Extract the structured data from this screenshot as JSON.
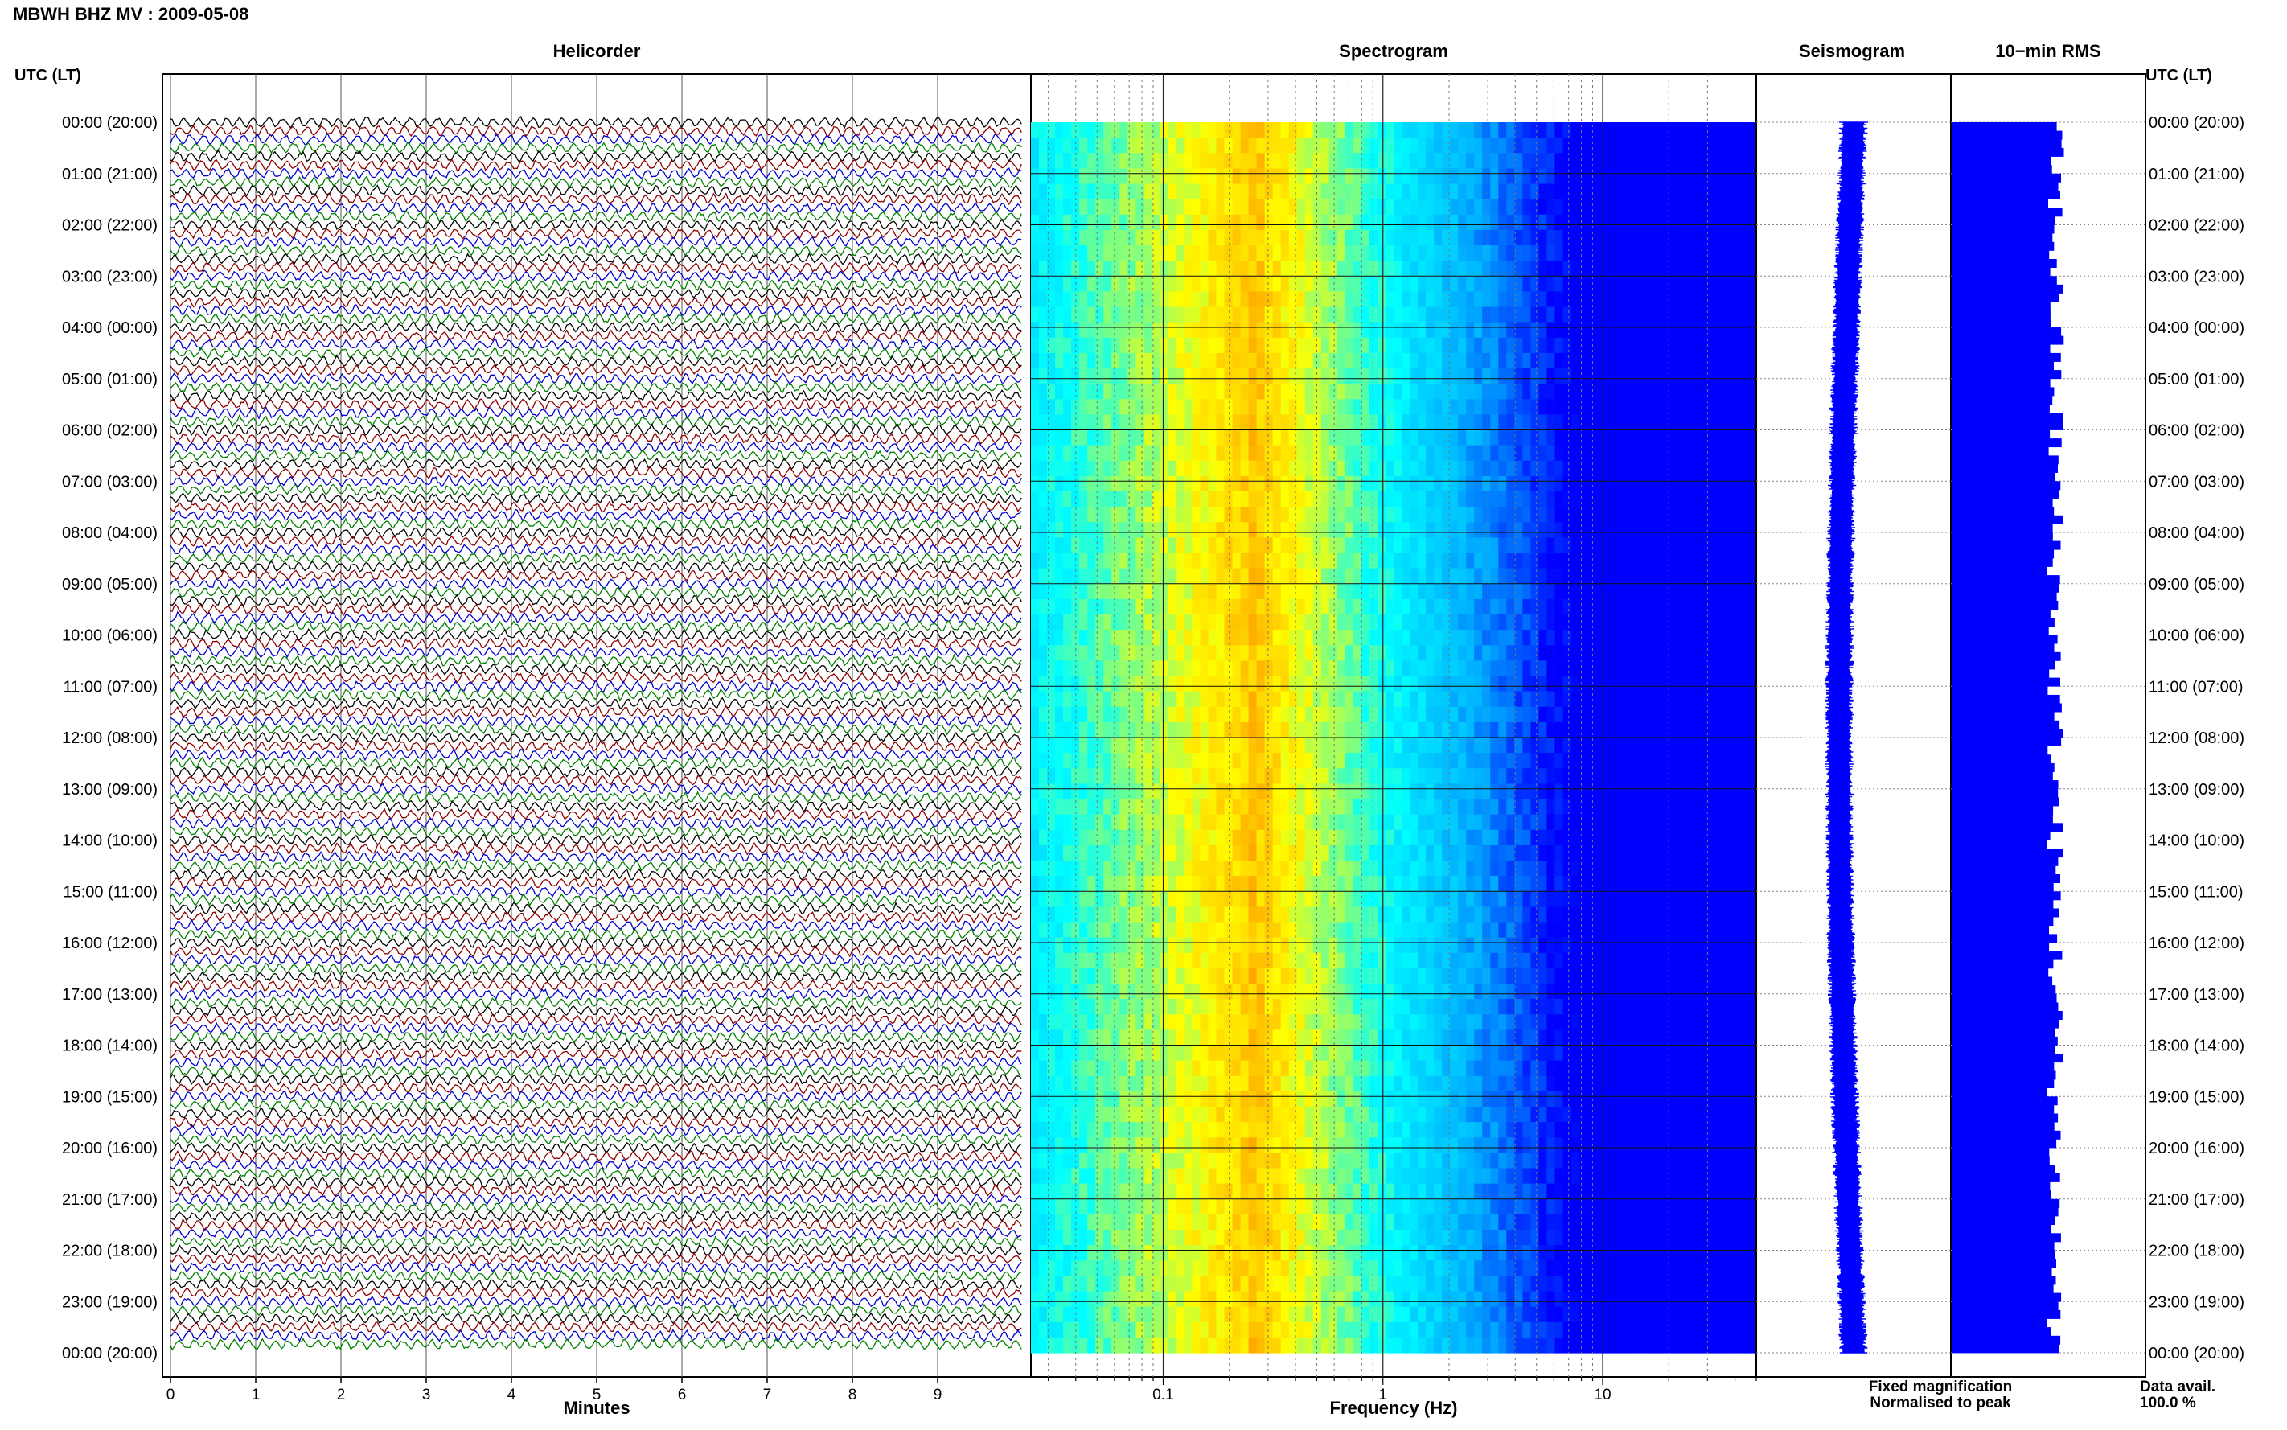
{
  "header": {
    "station_title": "MBWH BHZ MV : 2009-05-08",
    "left_axis_label": "UTC (LT)",
    "right_axis_label": "UTC (LT)"
  },
  "panels": {
    "helicorder_title": "Helicorder",
    "spectrogram_title": "Spectrogram",
    "seismogram_title": "Seismogram",
    "rms_title": "10−min RMS"
  },
  "legend": {
    "fixed_magnification": "Fixed magnification",
    "normalised_to_peak": "Normalised to peak",
    "data_avail_label": "Data avail.",
    "data_avail_value": "100.0 %",
    "fixed_color": "#0000ff",
    "normalised_color": "#ff0000"
  },
  "chart_data": [
    {
      "type": "line",
      "name": "helicorder",
      "xlabel": "Minutes",
      "xlim": [
        0,
        10
      ],
      "xticks": [
        "0",
        "1",
        "2",
        "3",
        "4",
        "5",
        "6",
        "7",
        "8",
        "9"
      ],
      "y_time_labels": [
        "00:00 (20:00)",
        "01:00 (21:00)",
        "02:00 (22:00)",
        "03:00 (23:00)",
        "04:00 (00:00)",
        "05:00 (01:00)",
        "06:00 (02:00)",
        "07:00 (03:00)",
        "08:00 (04:00)",
        "09:00 (05:00)",
        "10:00 (06:00)",
        "11:00 (07:00)",
        "12:00 (08:00)",
        "13:00 (09:00)",
        "14:00 (10:00)",
        "15:00 (11:00)",
        "16:00 (12:00)",
        "17:00 (13:00)",
        "18:00 (14:00)",
        "19:00 (15:00)",
        "20:00 (16:00)",
        "21:00 (17:00)",
        "22:00 (18:00)",
        "23:00 (19:00)",
        "00:00 (20:00)"
      ],
      "trace_minutes_per_line": 10,
      "trace_colors": [
        "#000000",
        "#8b0000",
        "#0000cd",
        "#008000"
      ],
      "grid": true
    },
    {
      "type": "heatmap",
      "name": "spectrogram",
      "xlabel": "Frequency (Hz)",
      "x_scale": "log",
      "xlim": [
        0.025,
        50
      ],
      "xticks": [
        0.1,
        1,
        10
      ],
      "xtick_labels": [
        "0.1",
        "1",
        "10"
      ],
      "energy_peak_hz": 0.25,
      "colormap": [
        "#0000ff",
        "#00aaff",
        "#00ffff",
        "#ffff00",
        "#ff8800"
      ]
    },
    {
      "type": "line",
      "name": "seismogram",
      "trace_color": "#0000ff"
    },
    {
      "type": "bar",
      "name": "10-min RMS",
      "bar_color": "#0000ff",
      "bars_per_hour": 6
    }
  ]
}
